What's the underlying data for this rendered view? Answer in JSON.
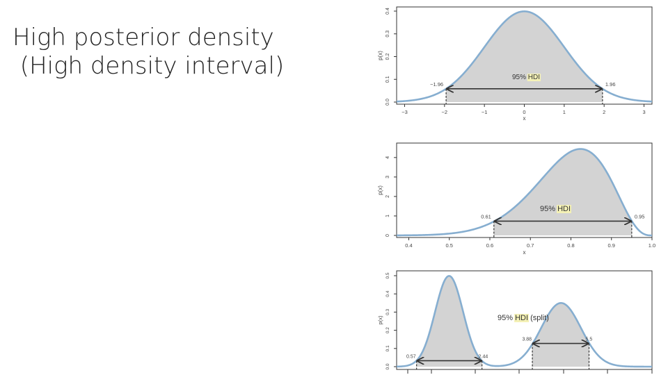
{
  "slide": {
    "title_line1": "High posterior density",
    "title_line2": " (High density interval)"
  },
  "colors": {
    "curve": "#86aed0",
    "fill": "#d3d3d3",
    "highlight": "#f4f1b6",
    "axis": "#333333",
    "text": "#444444"
  },
  "chart_data": [
    {
      "type": "area",
      "distribution": "normal(0, 1)",
      "xlabel": "x",
      "ylabel": "p(x)",
      "xlim": [
        -3.2,
        3.2
      ],
      "ylim": [
        0,
        0.4
      ],
      "xticks": [
        "−3",
        "−2",
        "−1",
        "0",
        "1",
        "2",
        "3"
      ],
      "yticks": [
        "0.0",
        "0.1",
        "0.2",
        "0.3",
        "0.4"
      ],
      "hdi": {
        "lower": -1.96,
        "upper": 1.96,
        "lower_label": "−1.96",
        "upper_label": "1.96"
      },
      "annotation": {
        "prefix": "95% ",
        "hdi": "HDI",
        "suffix": ""
      }
    },
    {
      "type": "area",
      "distribution": "beta(15, 4)",
      "xlabel": "x",
      "ylabel": "p(x)",
      "xlim": [
        0.37,
        1.0
      ],
      "ylim": [
        0,
        4.6
      ],
      "xticks": [
        "0.4",
        "0.5",
        "0.6",
        "0.7",
        "0.8",
        "0.9",
        "1.0"
      ],
      "yticks": [
        "0",
        "1",
        "2",
        "3",
        "4"
      ],
      "hdi": {
        "lower": 0.61,
        "upper": 0.95,
        "lower_label": "0.61",
        "upper_label": "0.95"
      },
      "annotation": {
        "prefix": "95% ",
        "hdi": "HDI",
        "suffix": " "
      }
    },
    {
      "type": "area",
      "distribution": "bimodal normal mixture",
      "xlabel": "",
      "ylabel": "p(x)",
      "xlim": [
        0,
        7.3
      ],
      "ylim": [
        0,
        0.5
      ],
      "xticks": [],
      "yticks": [
        "0.0",
        "0.1",
        "0.2",
        "0.3",
        "0.4",
        "0.5"
      ],
      "hdi": [
        {
          "lower": 0.57,
          "upper": 2.44,
          "lower_label": "0.57",
          "upper_label": "2.44"
        },
        {
          "lower": 3.88,
          "upper": 5.5,
          "lower_label": "3.88",
          "upper_label": "5.5"
        }
      ],
      "annotation": {
        "prefix": "95% ",
        "hdi": "HDI",
        "suffix": " (split)"
      }
    }
  ]
}
